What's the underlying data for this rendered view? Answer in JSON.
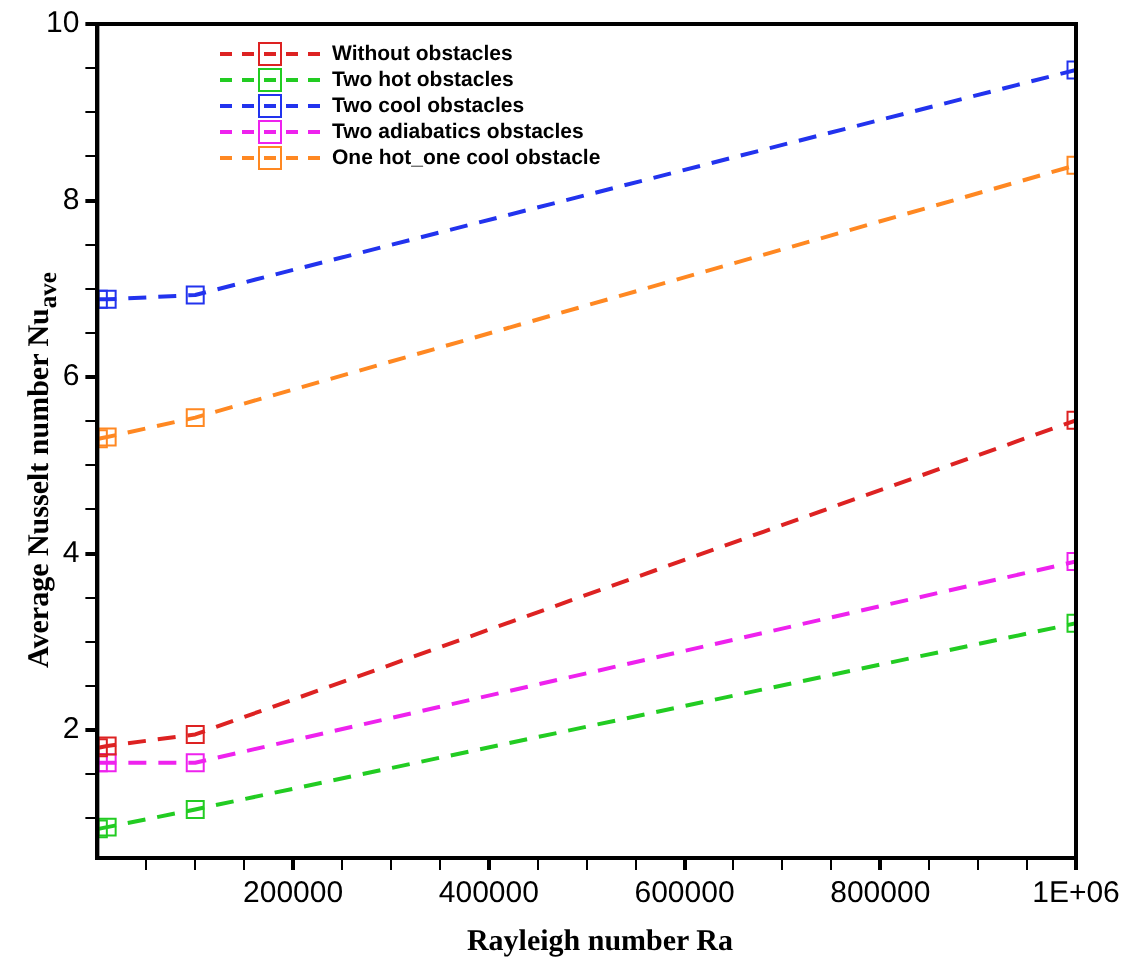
{
  "chart_data": {
    "type": "line",
    "xlabel": "Rayleigh number Ra",
    "ylabel": "Average Nusselt number Nu$_{ave}$",
    "x": [
      1000,
      10000,
      100000,
      1000000
    ],
    "series": [
      {
        "name": "Without obstacles",
        "color": "#dd2222",
        "values": [
          1.8,
          1.82,
          1.95,
          5.51
        ]
      },
      {
        "name": "Two hot obstacles",
        "color": "#22cc22",
        "values": [
          0.88,
          0.9,
          1.1,
          3.21
        ]
      },
      {
        "name": "Two cool obstacles",
        "color": "#2233ee",
        "values": [
          6.88,
          6.88,
          6.93,
          9.48
        ]
      },
      {
        "name": "Two adiabatics obstacles",
        "color": "#ee22ee",
        "values": [
          1.63,
          1.63,
          1.63,
          3.91
        ]
      },
      {
        "name": "One hot_one cool obstacle",
        "color": "#ff8822",
        "values": [
          5.3,
          5.32,
          5.54,
          8.4
        ]
      }
    ],
    "xlim": [
      0,
      1000000
    ],
    "xticks": [
      {
        "value": 50000,
        "label": null
      },
      {
        "value": 100000,
        "label": null
      },
      {
        "value": 150000,
        "label": null
      },
      200000,
      {
        "value": 250000,
        "label": null
      },
      {
        "value": 300000,
        "label": null
      },
      {
        "value": 350000,
        "label": null
      },
      400000,
      {
        "value": 450000,
        "label": null
      },
      {
        "value": 500000,
        "label": null
      },
      {
        "value": 550000,
        "label": null
      },
      600000,
      {
        "value": 650000,
        "label": null
      },
      {
        "value": 700000,
        "label": null
      },
      {
        "value": 750000,
        "label": null
      },
      800000,
      {
        "value": 850000,
        "label": null
      },
      {
        "value": 900000,
        "label": null
      },
      {
        "value": 950000,
        "label": null
      },
      {
        "value": 1000000,
        "label": "1E+06"
      }
    ],
    "ylim": [
      0.55,
      10
    ],
    "yticks": [
      {
        "value": 1,
        "label": null
      },
      {
        "value": 1.5,
        "label": null
      },
      2,
      {
        "value": 2.5,
        "label": null
      },
      {
        "value": 3,
        "label": null
      },
      {
        "value": 3.5,
        "label": null
      },
      4,
      {
        "value": 4.5,
        "label": null
      },
      {
        "value": 5,
        "label": null
      },
      {
        "value": 5.5,
        "label": null
      },
      6,
      {
        "value": 6.5,
        "label": null
      },
      {
        "value": 7,
        "label": null
      },
      {
        "value": 7.5,
        "label": null
      },
      8,
      {
        "value": 8.5,
        "label": null
      },
      {
        "value": 9,
        "label": null
      },
      {
        "value": 9.5,
        "label": null
      },
      10
    ],
    "grid": false,
    "legend": "top left",
    "marker": "square",
    "line_style": "dashed"
  }
}
